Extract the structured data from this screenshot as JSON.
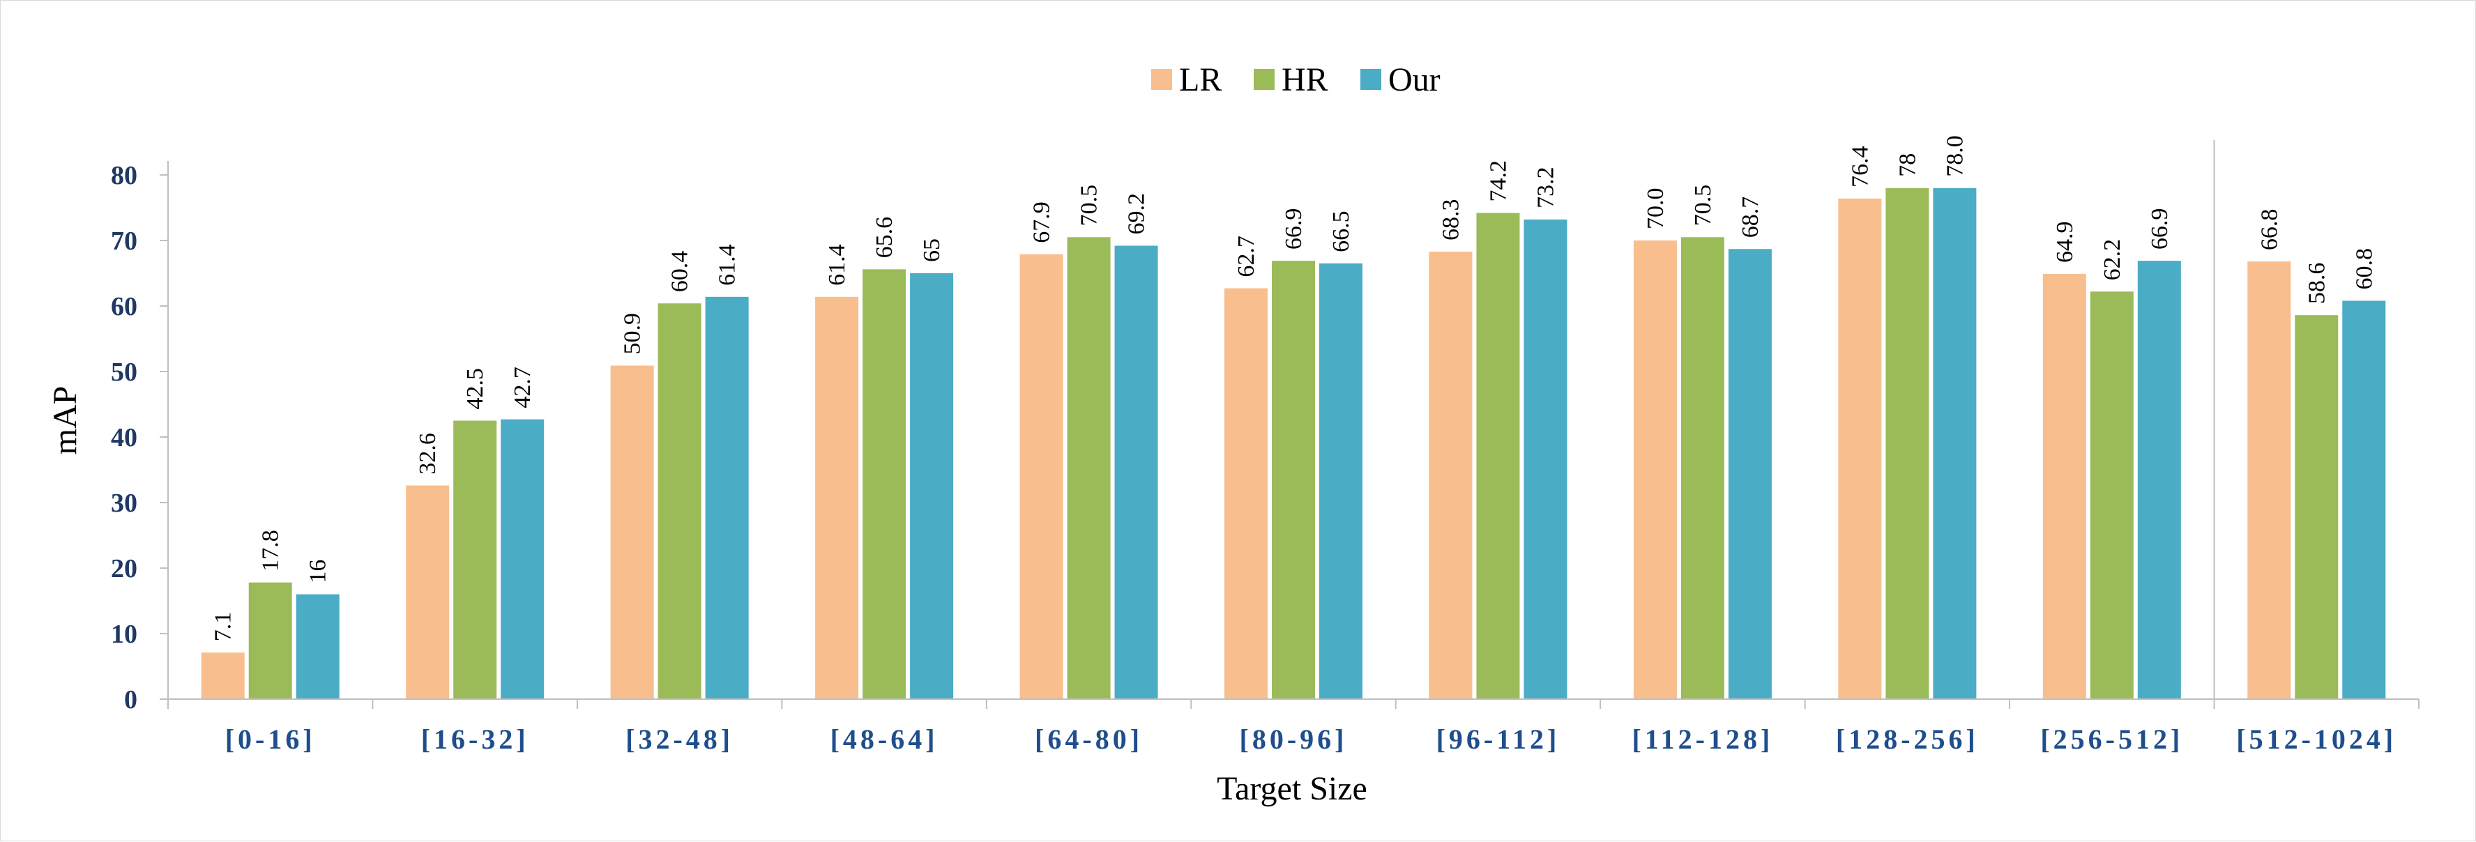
{
  "chart_data": {
    "type": "bar",
    "title": "",
    "xlabel": "Target Size",
    "ylabel": "mAP",
    "ylim": [
      0,
      80
    ],
    "yticks": [
      "0",
      "10",
      "20",
      "30",
      "40",
      "50",
      "60",
      "70",
      "80"
    ],
    "categories": [
      "[0-16]",
      "[16-32]",
      "[32-48]",
      "[48-64]",
      "[64-80]",
      "[80-96]",
      "[96-112]",
      "[112-128]",
      "[128-256]",
      "[256-512]",
      "[512-1024]"
    ],
    "legend_position": "top-center",
    "grid": false,
    "series": [
      {
        "name": "LR",
        "color": "#f8be8d",
        "values": [
          7.1,
          32.6,
          50.9,
          61.4,
          67.9,
          62.7,
          68.3,
          70.0,
          76.4,
          64.9,
          66.8
        ],
        "labels": [
          "7.1",
          "32.6",
          "50.9",
          "61.4",
          "67.9",
          "62.7",
          "68.3",
          "70.0",
          "76.4",
          "64.9",
          "66.8"
        ]
      },
      {
        "name": "HR",
        "color": "#9bbb59",
        "values": [
          17.8,
          42.5,
          60.4,
          65.6,
          70.5,
          66.9,
          74.2,
          70.5,
          78,
          62.2,
          58.6
        ],
        "labels": [
          "17.8",
          "42.5",
          "60.4",
          "65.6",
          "70.5",
          "66.9",
          "74.2",
          "70.5",
          "78",
          "62.2",
          "58.6"
        ]
      },
      {
        "name": "Our",
        "color": "#4bacc6",
        "values": [
          16,
          42.7,
          61.4,
          65,
          69.2,
          66.5,
          73.2,
          68.7,
          78.0,
          66.9,
          60.8
        ],
        "labels": [
          "16",
          "42.7",
          "61.4",
          "65",
          "69.2",
          "66.5",
          "73.2",
          "68.7",
          "78.0",
          "66.9",
          "60.8"
        ]
      }
    ],
    "separator_after_category": "[256-512]",
    "axis_color": "#bfbfbf"
  }
}
